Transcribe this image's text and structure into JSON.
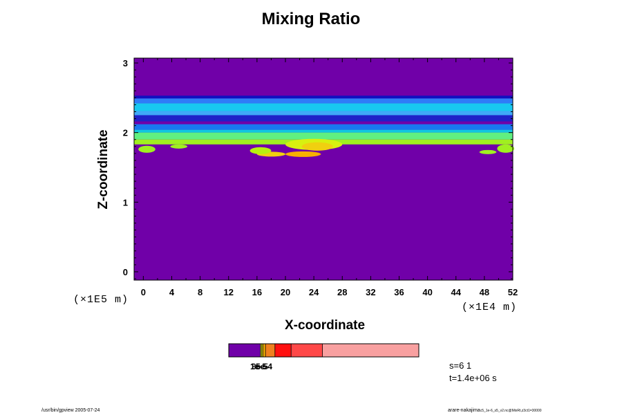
{
  "chart_data": {
    "type": "heatmap",
    "title": "Mixing Ratio",
    "xlabel": "X-coordinate",
    "ylabel": "Z-coordinate",
    "x_scale_note": "(×1E4 m)",
    "y_scale_note": "(×1E5 m)",
    "xlim": [
      -1.3,
      52
    ],
    "ylim": [
      -0.12,
      3.07
    ],
    "x_ticks": [
      0,
      4,
      8,
      12,
      16,
      20,
      24,
      28,
      32,
      36,
      40,
      44,
      48,
      52
    ],
    "y_ticks": [
      0,
      1,
      2,
      3
    ],
    "background_color": "#7000a8",
    "layers": [
      {
        "z0": 2.49,
        "z1": 2.53,
        "color": "#1010c0"
      },
      {
        "z0": 2.42,
        "z1": 2.49,
        "color": "#2f7cf8"
      },
      {
        "z0": 2.31,
        "z1": 2.42,
        "color": "#18c8f0"
      },
      {
        "z0": 2.25,
        "z1": 2.31,
        "color": "#3fa8f8"
      },
      {
        "z0": 2.16,
        "z1": 2.25,
        "color": "#2020c8"
      },
      {
        "z0": 2.12,
        "z1": 2.16,
        "color": "#7000a8"
      },
      {
        "z0": 2.04,
        "z1": 2.12,
        "color": "#1878f0"
      },
      {
        "z0": 2.0,
        "z1": 2.04,
        "color": "#10c8e0"
      },
      {
        "z0": 1.9,
        "z1": 2.0,
        "color": "#60f080"
      },
      {
        "z0": 1.83,
        "z1": 1.9,
        "color": "#a0f020"
      }
    ],
    "patches": [
      {
        "x": 24.0,
        "z": 1.83,
        "rx": 4.0,
        "rz": 0.08,
        "color": "#d8f010"
      },
      {
        "x": 24.5,
        "z": 1.8,
        "rx": 2.2,
        "rz": 0.06,
        "color": "#f0d010"
      },
      {
        "x": 22.5,
        "z": 1.69,
        "rx": 2.5,
        "rz": 0.04,
        "color": "#f8b000"
      },
      {
        "x": 18.0,
        "z": 1.69,
        "rx": 2.0,
        "rz": 0.035,
        "color": "#f0d010"
      },
      {
        "x": 16.5,
        "z": 1.74,
        "rx": 1.5,
        "rz": 0.05,
        "color": "#b8f010"
      },
      {
        "x": 0.5,
        "z": 1.76,
        "rx": 1.2,
        "rz": 0.05,
        "color": "#a0f020"
      },
      {
        "x": 51.0,
        "z": 1.77,
        "rx": 1.2,
        "rz": 0.06,
        "color": "#a0f020"
      },
      {
        "x": 48.5,
        "z": 1.72,
        "rx": 1.2,
        "rz": 0.03,
        "color": "#a0f020"
      },
      {
        "x": 5.0,
        "z": 1.8,
        "rx": 1.2,
        "rz": 0.03,
        "color": "#a0f020"
      }
    ],
    "colorbar": {
      "segments": [
        {
          "frac": 0.167,
          "color": "#7000a8"
        },
        {
          "frac": 0.007,
          "color": "#d8f010"
        },
        {
          "frac": 0.007,
          "color": "#f0d010"
        },
        {
          "frac": 0.012,
          "color": "#f8b000"
        },
        {
          "frac": 0.05,
          "color": "#f08020"
        },
        {
          "frac": 0.085,
          "color": "#ff1010"
        },
        {
          "frac": 0.165,
          "color": "#ff4848"
        },
        {
          "frac": 0.507,
          "color": "#f8a0a0"
        }
      ],
      "labels": [
        "1e-5",
        "3e-5",
        "5e-4"
      ]
    },
    "grid": false,
    "legend": "colorbar-bottom"
  },
  "info": {
    "s_label": "s=6 1",
    "t_label": "t=1.4e+06 s"
  },
  "footer": {
    "left": "/usr/bin/gpview 2005-07-24",
    "right_main": "arare-nakajima",
    "right_small": "c5_1e-6_s5_v2.nc@MixRt,z3ct1=30000"
  }
}
